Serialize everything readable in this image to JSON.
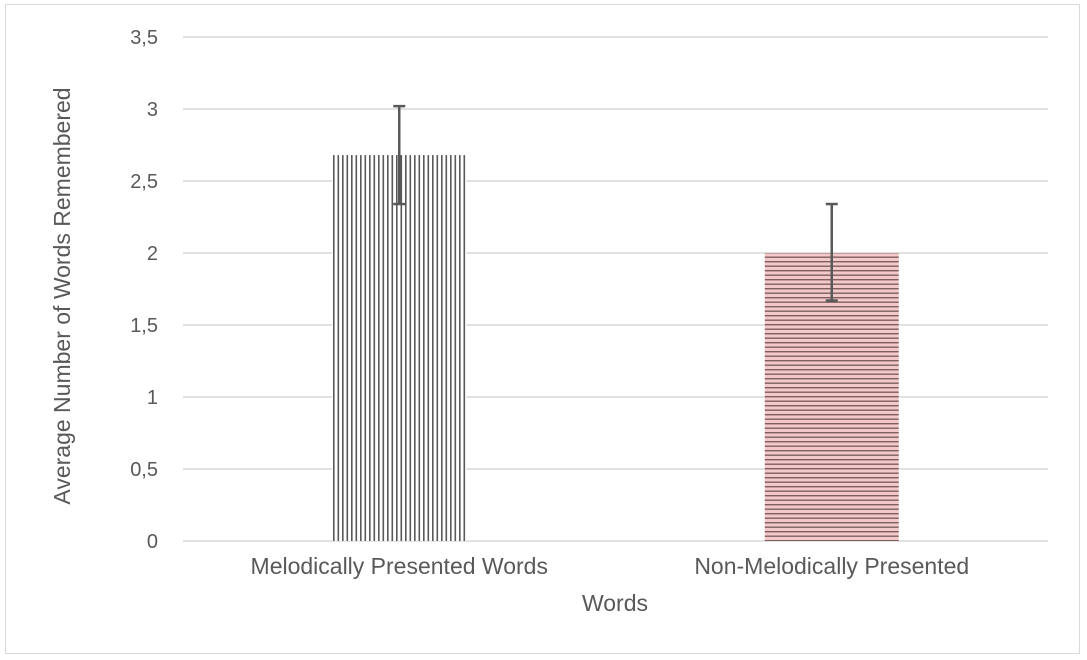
{
  "chart_data": {
    "type": "bar",
    "categories": [
      "Melodically Presented Words",
      "Non-Melodically Presented"
    ],
    "values": [
      2.68,
      2.0
    ],
    "error_bars": [
      {
        "low": 2.34,
        "high": 3.02
      },
      {
        "low": 1.67,
        "high": 2.34
      }
    ],
    "ylim": [
      0,
      3.5
    ],
    "yticks": [
      "0",
      "0,5",
      "1",
      "1,5",
      "2",
      "2,5",
      "3",
      "3,5"
    ],
    "ytick_values": [
      0,
      0.5,
      1,
      1.5,
      2,
      2.5,
      3,
      3.5
    ],
    "xlabel": "Words",
    "ylabel": "Average Number of Words Remembered",
    "grid": true,
    "bar_styles": [
      {
        "pattern": "vertical-lines",
        "line_color": "#595959",
        "fill_color": "#ffffff"
      },
      {
        "pattern": "horizontal-lines",
        "line_color": "#7f5f5f",
        "fill_color": "#f3c8c8"
      }
    ],
    "colors": {
      "grid": "#d9d9d9",
      "text": "#595959",
      "error_bar": "#595959"
    }
  }
}
